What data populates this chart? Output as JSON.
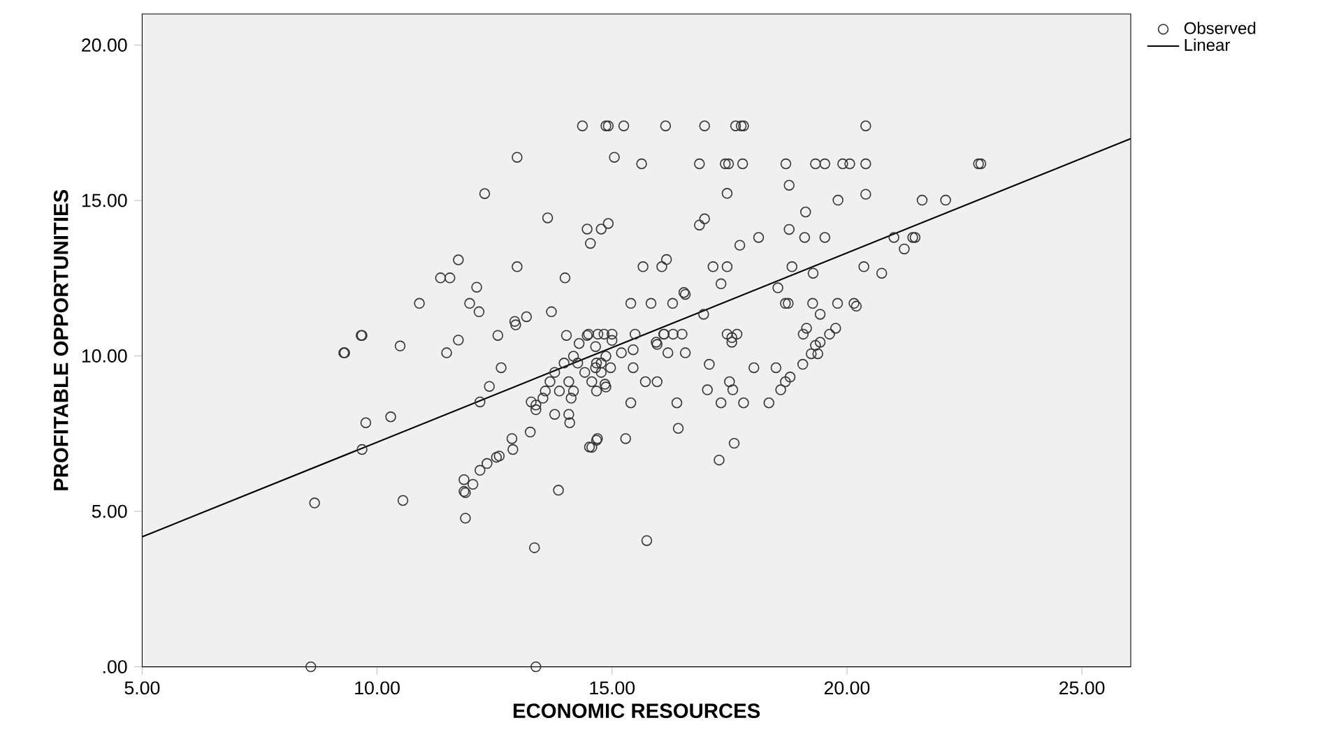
{
  "chart_data": {
    "type": "scatter",
    "xlabel": "ECONOMIC RESOURCES",
    "ylabel": "PROFITABLE OPPORTUNITIES",
    "xlim": [
      5,
      26.04
    ],
    "ylim": [
      0,
      21
    ],
    "xticks": [
      {
        "value": 5,
        "label": "5.00"
      },
      {
        "value": 10,
        "label": "10.00"
      },
      {
        "value": 15,
        "label": "15.00"
      },
      {
        "value": 20,
        "label": "20.00"
      },
      {
        "value": 25,
        "label": "25.00"
      }
    ],
    "yticks": [
      {
        "value": 0,
        "label": ".00"
      },
      {
        "value": 5,
        "label": "5.00"
      },
      {
        "value": 10,
        "label": "10.00"
      },
      {
        "value": 15,
        "label": "15.00"
      },
      {
        "value": 20,
        "label": "20.00"
      }
    ],
    "grid": false,
    "legend": "top right",
    "series": [
      {
        "name": "Observed",
        "color": "#333333",
        "marker": "circle",
        "x": [
          14.37,
          14.87,
          14.92,
          15.25,
          16.14,
          16.97,
          17.63,
          17.75,
          17.8,
          20.4,
          12.98,
          15.05,
          15.63,
          16.86,
          17.41,
          17.48,
          17.78,
          18.7,
          19.33,
          19.53,
          19.91,
          20.06,
          20.4,
          22.8,
          22.85,
          17.45,
          20.4,
          18.77,
          19.81,
          21.6,
          22.1,
          12.29,
          19.12,
          13.63,
          14.92,
          14.47,
          14.77,
          14.54,
          16.97,
          16.86,
          18.77,
          18.12,
          19.1,
          19.53,
          21.0,
          21.4,
          21.45,
          17.72,
          21.22,
          16.16,
          15.66,
          16.06,
          17.15,
          17.45,
          18.83,
          20.36,
          19.28,
          20.74,
          11.73,
          12.98,
          11.35,
          11.55,
          14.0,
          12.12,
          10.9,
          11.97,
          12.17,
          13.71,
          13.18,
          12.93,
          12.95,
          9.66,
          9.68,
          12.57,
          14.03,
          14.47,
          11.73,
          10.49,
          9.29,
          9.31,
          11.48,
          17.32,
          18.53,
          16.53,
          16.56,
          15.4,
          15.83,
          16.29,
          18.69,
          18.75,
          19.27,
          19.8,
          20.15,
          20.2,
          16.95,
          19.43,
          14.83,
          15.49,
          16.11,
          16.49,
          17.45,
          17.66,
          19.07,
          19.63,
          19.76,
          19.14,
          15.94,
          17.55,
          19.43,
          16.19,
          16.56,
          19.33,
          17.55,
          15.96,
          17.07,
          19.06,
          19.24,
          19.38,
          15.45,
          18.02,
          18.49,
          14.65,
          14.97,
          18.79,
          15.71,
          15.96,
          17.5,
          18.69,
          14.85,
          17.03,
          17.57,
          18.59,
          15.4,
          16.38,
          17.32,
          17.8,
          18.34,
          16.41,
          15.29,
          14.69,
          17.6,
          14.57,
          17.28,
          15.74,
          12.64,
          12.39,
          12.19,
          13.28,
          13.38,
          9.76,
          10.29,
          13.26,
          12.87,
          9.68,
          12.89,
          12.54,
          12.6,
          12.34,
          12.19,
          11.85,
          12.04,
          11.85,
          11.88,
          13.86,
          10.55,
          8.67,
          11.88,
          13.35,
          8.59,
          13.38,
          13.98,
          14.27,
          14.67,
          14.77,
          13.78,
          14.42,
          14.77,
          13.68,
          14.08,
          14.57,
          13.58,
          13.88,
          14.18,
          14.67,
          13.53,
          14.13,
          13.38,
          13.78,
          14.08,
          14.1,
          14.67,
          14.52,
          14.18,
          14.87,
          14.87,
          14.65,
          15.45,
          14.5,
          14.7,
          15.0,
          16.1,
          16.3,
          15.2,
          15.0,
          14.3
        ],
        "values": [
          17.4,
          17.4,
          17.4,
          17.4,
          17.4,
          17.4,
          17.4,
          17.4,
          17.4,
          17.4,
          16.39,
          16.39,
          16.18,
          16.18,
          16.18,
          16.18,
          16.18,
          16.18,
          16.18,
          16.18,
          16.18,
          16.18,
          16.18,
          16.18,
          16.18,
          15.23,
          15.2,
          15.49,
          15.01,
          15.01,
          15.01,
          15.22,
          14.63,
          14.44,
          14.26,
          14.08,
          14.08,
          13.62,
          14.41,
          14.21,
          14.07,
          13.81,
          13.81,
          13.81,
          13.81,
          13.81,
          13.81,
          13.56,
          13.44,
          13.1,
          12.87,
          12.87,
          12.87,
          12.87,
          12.87,
          12.87,
          12.66,
          12.66,
          13.09,
          12.87,
          12.51,
          12.51,
          12.51,
          12.21,
          11.69,
          11.69,
          11.42,
          11.42,
          11.26,
          11.11,
          11.0,
          10.66,
          10.66,
          10.66,
          10.66,
          10.66,
          10.51,
          10.32,
          10.1,
          10.1,
          10.1,
          12.32,
          12.19,
          12.04,
          11.98,
          11.69,
          11.69,
          11.69,
          11.69,
          11.69,
          11.69,
          11.69,
          11.69,
          11.6,
          11.34,
          11.34,
          10.7,
          10.7,
          10.7,
          10.7,
          10.7,
          10.7,
          10.7,
          10.7,
          10.89,
          10.89,
          10.44,
          10.44,
          10.44,
          10.1,
          10.1,
          10.34,
          10.59,
          10.37,
          9.73,
          9.73,
          10.07,
          10.07,
          9.62,
          9.62,
          9.62,
          9.62,
          9.62,
          9.32,
          9.17,
          9.17,
          9.17,
          9.17,
          9.09,
          8.91,
          8.91,
          8.91,
          8.49,
          8.49,
          8.49,
          8.49,
          8.49,
          7.67,
          7.34,
          7.34,
          7.19,
          7.06,
          6.65,
          4.06,
          9.62,
          9.02,
          8.52,
          8.52,
          8.27,
          7.85,
          8.04,
          7.55,
          7.34,
          6.99,
          6.99,
          6.74,
          6.78,
          6.54,
          6.32,
          6.02,
          5.87,
          5.64,
          5.6,
          5.68,
          5.35,
          5.27,
          4.78,
          3.83,
          0,
          0,
          9.77,
          9.77,
          9.77,
          9.77,
          9.47,
          9.47,
          9.47,
          9.17,
          9.17,
          9.17,
          8.87,
          8.87,
          8.87,
          8.87,
          8.64,
          8.64,
          8.42,
          8.12,
          8.12,
          7.85,
          7.29,
          7.07,
          9.99,
          9.99,
          9.0,
          10.3,
          10.2,
          10.7,
          10.7,
          10.7,
          10.7,
          10.7,
          10.1,
          10.5,
          10.4
        ]
      },
      {
        "name": "Linear",
        "type": "line",
        "color": "#000000",
        "marker": "none",
        "line_style": "solid",
        "x": [
          5,
          26.04
        ],
        "values": [
          4.18,
          16.99
        ]
      }
    ]
  }
}
